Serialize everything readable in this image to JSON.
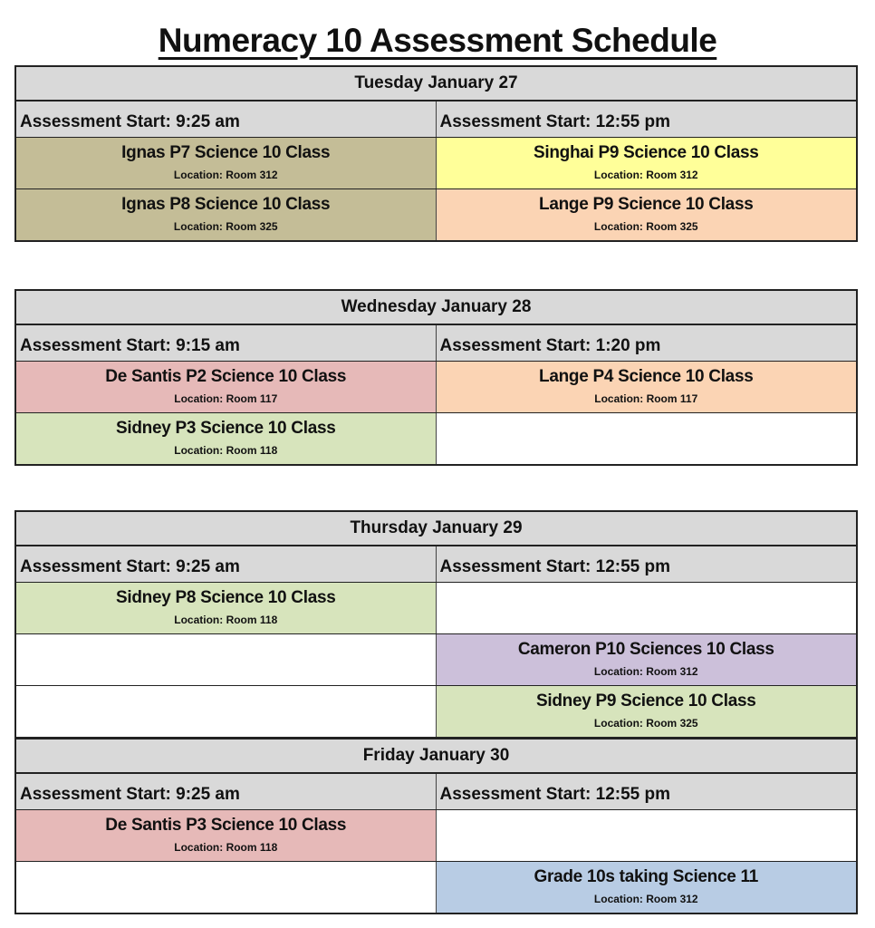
{
  "title": "Numeracy 10 Assessment Schedule",
  "colors": {
    "header_gray": "#d9d9d9",
    "tan": "#c4bd97",
    "yellow": "#ffff99",
    "peach": "#fbd4b4",
    "pink": "#e6b9b8",
    "green": "#d7e4bc",
    "purple": "#ccc0da",
    "blue": "#b8cce4"
  },
  "blocks": [
    {
      "days": [
        {
          "day": "Tuesday January 27",
          "starts": [
            "Assessment Start: 9:25 am",
            "Assessment Start: 12:55 pm"
          ],
          "rows": [
            [
              {
                "name": "Ignas P7 Science 10 Class",
                "location": "Location: Room 312",
                "color": "#c4bd97"
              },
              {
                "name": "Singhai P9 Science 10 Class",
                "location": "Location: Room 312",
                "color": "#ffff99"
              }
            ],
            [
              {
                "name": "Ignas P8 Science 10 Class",
                "location": "Location: Room 325",
                "color": "#c4bd97"
              },
              {
                "name": "Lange P9 Science 10 Class",
                "location": "Location: Room 325",
                "color": "#fbd4b4"
              }
            ]
          ]
        }
      ]
    },
    {
      "days": [
        {
          "day": "Wednesday January 28",
          "starts": [
            "Assessment Start: 9:15 am",
            "Assessment Start: 1:20 pm"
          ],
          "rows": [
            [
              {
                "name": "De Santis P2 Science 10 Class",
                "location": "Location: Room 117",
                "color": "#e6b9b8"
              },
              {
                "name": "Lange P4 Science 10 Class",
                "location": "Location: Room 117",
                "color": "#fbd4b4"
              }
            ],
            [
              {
                "name": "Sidney P3 Science 10 Class",
                "location": "Location: Room 118",
                "color": "#d7e4bc"
              },
              null
            ]
          ]
        }
      ]
    },
    {
      "days": [
        {
          "day": "Thursday January 29",
          "starts": [
            "Assessment Start: 9:25 am",
            "Assessment Start: 12:55 pm"
          ],
          "rows": [
            [
              {
                "name": "Sidney P8 Science 10 Class",
                "location": "Location: Room 118",
                "color": "#d7e4bc"
              },
              null
            ],
            [
              null,
              {
                "name": "Cameron P10 Sciences 10 Class",
                "location": "Location: Room 312",
                "color": "#ccc0da"
              }
            ],
            [
              null,
              {
                "name": "Sidney P9 Science 10 Class",
                "location": "Location: Room 325",
                "color": "#d7e4bc"
              }
            ]
          ]
        },
        {
          "day": "Friday January 30",
          "starts": [
            "Assessment Start: 9:25 am",
            "Assessment Start: 12:55 pm"
          ],
          "rows": [
            [
              {
                "name": "De Santis P3 Science 10 Class",
                "location": "Location: Room 118",
                "color": "#e6b9b8"
              },
              null
            ],
            [
              null,
              {
                "name": "Grade 10s taking Science 11",
                "location": "Location: Room 312",
                "color": "#b8cce4"
              }
            ]
          ]
        }
      ]
    }
  ]
}
